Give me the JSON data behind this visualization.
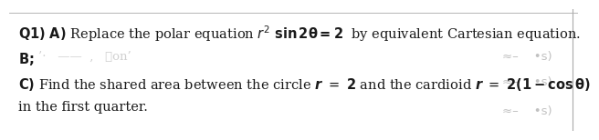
{
  "bg_color": "#ffffff",
  "text_color": "#1a1a1a",
  "stamp_color": "#777777",
  "border_color": "#aaaaaa",
  "font_size": 10.5,
  "line1": "Q1) A) Replace the polar equation $r^2$ sin 2θ = 2  by equivalent Cartesian equation.",
  "line2_left": "B;",
  "line3": "C) Find the shared area between the circle r  =  2 and the cardioid r  = 2(1 – cos θ)",
  "line4": "in the first quarter."
}
